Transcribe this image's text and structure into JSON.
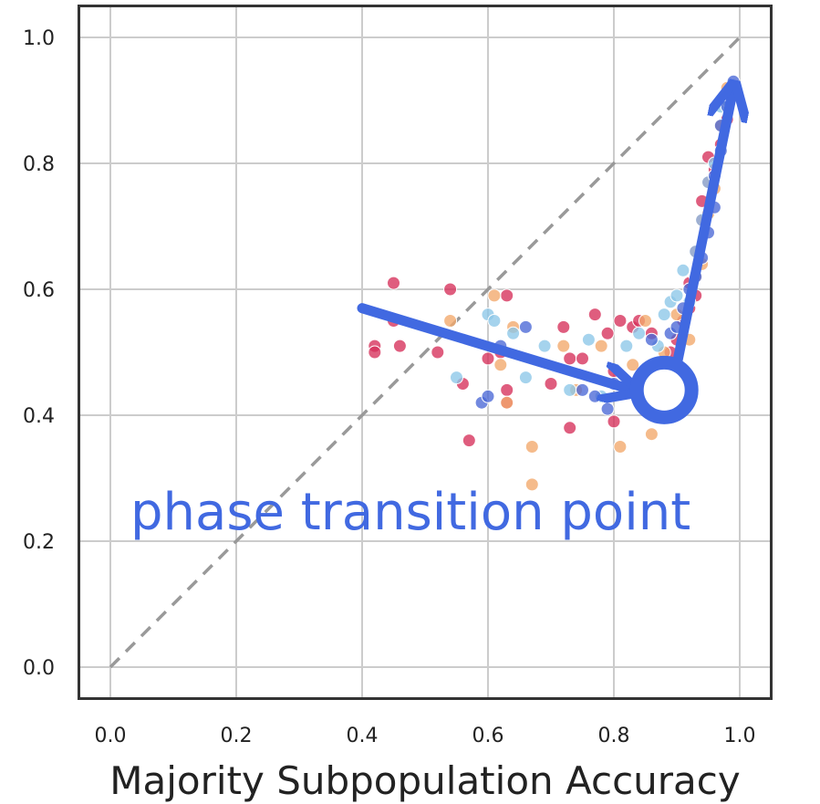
{
  "chart_data": {
    "type": "scatter",
    "xlabel": "Majority Subpopulation Accuracy",
    "ylabel": "",
    "xlim": [
      -0.05,
      1.05
    ],
    "ylim": [
      -0.05,
      1.05
    ],
    "x_ticks": [
      "0.0",
      "0.2",
      "0.4",
      "0.6",
      "0.8",
      "1.0"
    ],
    "y_ticks": [
      "0.0",
      "0.2",
      "0.4",
      "0.6",
      "0.8",
      "1.0"
    ],
    "grid": true,
    "diagonal_reference": {
      "from": [
        0,
        0
      ],
      "to": [
        1,
        1
      ],
      "style": "dashed",
      "color": "#999999"
    },
    "annotation": {
      "text": "phase transition point",
      "color": "#4169e1",
      "marker": {
        "x": 0.88,
        "y": 0.44
      },
      "arrows": [
        {
          "from": [
            0.4,
            0.57
          ],
          "to": [
            0.83,
            0.44
          ]
        },
        {
          "from": [
            0.9,
            0.48
          ],
          "to": [
            0.99,
            0.92
          ]
        }
      ]
    },
    "series": [
      {
        "color": "#d62f5a",
        "points": [
          [
            0.42,
            0.51
          ],
          [
            0.42,
            0.5
          ],
          [
            0.45,
            0.61
          ],
          [
            0.45,
            0.55
          ],
          [
            0.46,
            0.51
          ],
          [
            0.52,
            0.5
          ],
          [
            0.54,
            0.6
          ],
          [
            0.56,
            0.45
          ],
          [
            0.57,
            0.36
          ],
          [
            0.6,
            0.49
          ],
          [
            0.62,
            0.5
          ],
          [
            0.63,
            0.59
          ],
          [
            0.63,
            0.44
          ],
          [
            0.63,
            0.42
          ],
          [
            0.7,
            0.45
          ],
          [
            0.72,
            0.54
          ],
          [
            0.73,
            0.49
          ],
          [
            0.73,
            0.38
          ],
          [
            0.75,
            0.49
          ],
          [
            0.77,
            0.56
          ],
          [
            0.79,
            0.53
          ],
          [
            0.8,
            0.47
          ],
          [
            0.8,
            0.39
          ],
          [
            0.81,
            0.55
          ],
          [
            0.83,
            0.54
          ],
          [
            0.84,
            0.55
          ],
          [
            0.86,
            0.53
          ],
          [
            0.87,
            0.48
          ],
          [
            0.88,
            0.47
          ],
          [
            0.89,
            0.5
          ],
          [
            0.9,
            0.52
          ],
          [
            0.91,
            0.55
          ],
          [
            0.92,
            0.57
          ],
          [
            0.92,
            0.61
          ],
          [
            0.93,
            0.59
          ],
          [
            0.93,
            0.66
          ],
          [
            0.94,
            0.71
          ],
          [
            0.94,
            0.74
          ],
          [
            0.95,
            0.77
          ],
          [
            0.95,
            0.81
          ],
          [
            0.96,
            0.79
          ],
          [
            0.97,
            0.83
          ],
          [
            0.98,
            0.87
          ]
        ]
      },
      {
        "color": "#f2a86a",
        "points": [
          [
            0.54,
            0.55
          ],
          [
            0.61,
            0.59
          ],
          [
            0.62,
            0.48
          ],
          [
            0.63,
            0.42
          ],
          [
            0.64,
            0.54
          ],
          [
            0.67,
            0.35
          ],
          [
            0.67,
            0.29
          ],
          [
            0.72,
            0.51
          ],
          [
            0.74,
            0.44
          ],
          [
            0.78,
            0.51
          ],
          [
            0.81,
            0.35
          ],
          [
            0.83,
            0.48
          ],
          [
            0.85,
            0.55
          ],
          [
            0.86,
            0.37
          ],
          [
            0.88,
            0.5
          ],
          [
            0.9,
            0.56
          ],
          [
            0.92,
            0.52
          ],
          [
            0.93,
            0.62
          ],
          [
            0.94,
            0.64
          ],
          [
            0.95,
            0.72
          ],
          [
            0.96,
            0.76
          ],
          [
            0.97,
            0.86
          ],
          [
            0.98,
            0.92
          ]
        ]
      },
      {
        "color": "#8cc7e8",
        "points": [
          [
            0.55,
            0.46
          ],
          [
            0.6,
            0.56
          ],
          [
            0.61,
            0.55
          ],
          [
            0.64,
            0.53
          ],
          [
            0.66,
            0.46
          ],
          [
            0.69,
            0.51
          ],
          [
            0.73,
            0.44
          ],
          [
            0.76,
            0.52
          ],
          [
            0.78,
            0.43
          ],
          [
            0.82,
            0.51
          ],
          [
            0.84,
            0.53
          ],
          [
            0.86,
            0.47
          ],
          [
            0.87,
            0.51
          ],
          [
            0.88,
            0.56
          ],
          [
            0.89,
            0.58
          ],
          [
            0.9,
            0.59
          ],
          [
            0.91,
            0.63
          ],
          [
            0.92,
            0.58
          ],
          [
            0.93,
            0.66
          ],
          [
            0.94,
            0.71
          ],
          [
            0.95,
            0.77
          ],
          [
            0.96,
            0.8
          ],
          [
            0.97,
            0.89
          ],
          [
            0.98,
            0.9
          ]
        ]
      },
      {
        "color": "#4a68d6",
        "points": [
          [
            0.59,
            0.42
          ],
          [
            0.6,
            0.43
          ],
          [
            0.62,
            0.51
          ],
          [
            0.66,
            0.54
          ],
          [
            0.75,
            0.44
          ],
          [
            0.77,
            0.43
          ],
          [
            0.79,
            0.41
          ],
          [
            0.8,
            0.45
          ],
          [
            0.86,
            0.52
          ],
          [
            0.89,
            0.53
          ],
          [
            0.9,
            0.54
          ],
          [
            0.91,
            0.57
          ],
          [
            0.92,
            0.6
          ],
          [
            0.93,
            0.62
          ],
          [
            0.94,
            0.65
          ],
          [
            0.95,
            0.69
          ],
          [
            0.96,
            0.73
          ],
          [
            0.96,
            0.78
          ],
          [
            0.97,
            0.82
          ],
          [
            0.97,
            0.86
          ],
          [
            0.98,
            0.89
          ],
          [
            0.99,
            0.93
          ]
        ]
      }
    ]
  }
}
